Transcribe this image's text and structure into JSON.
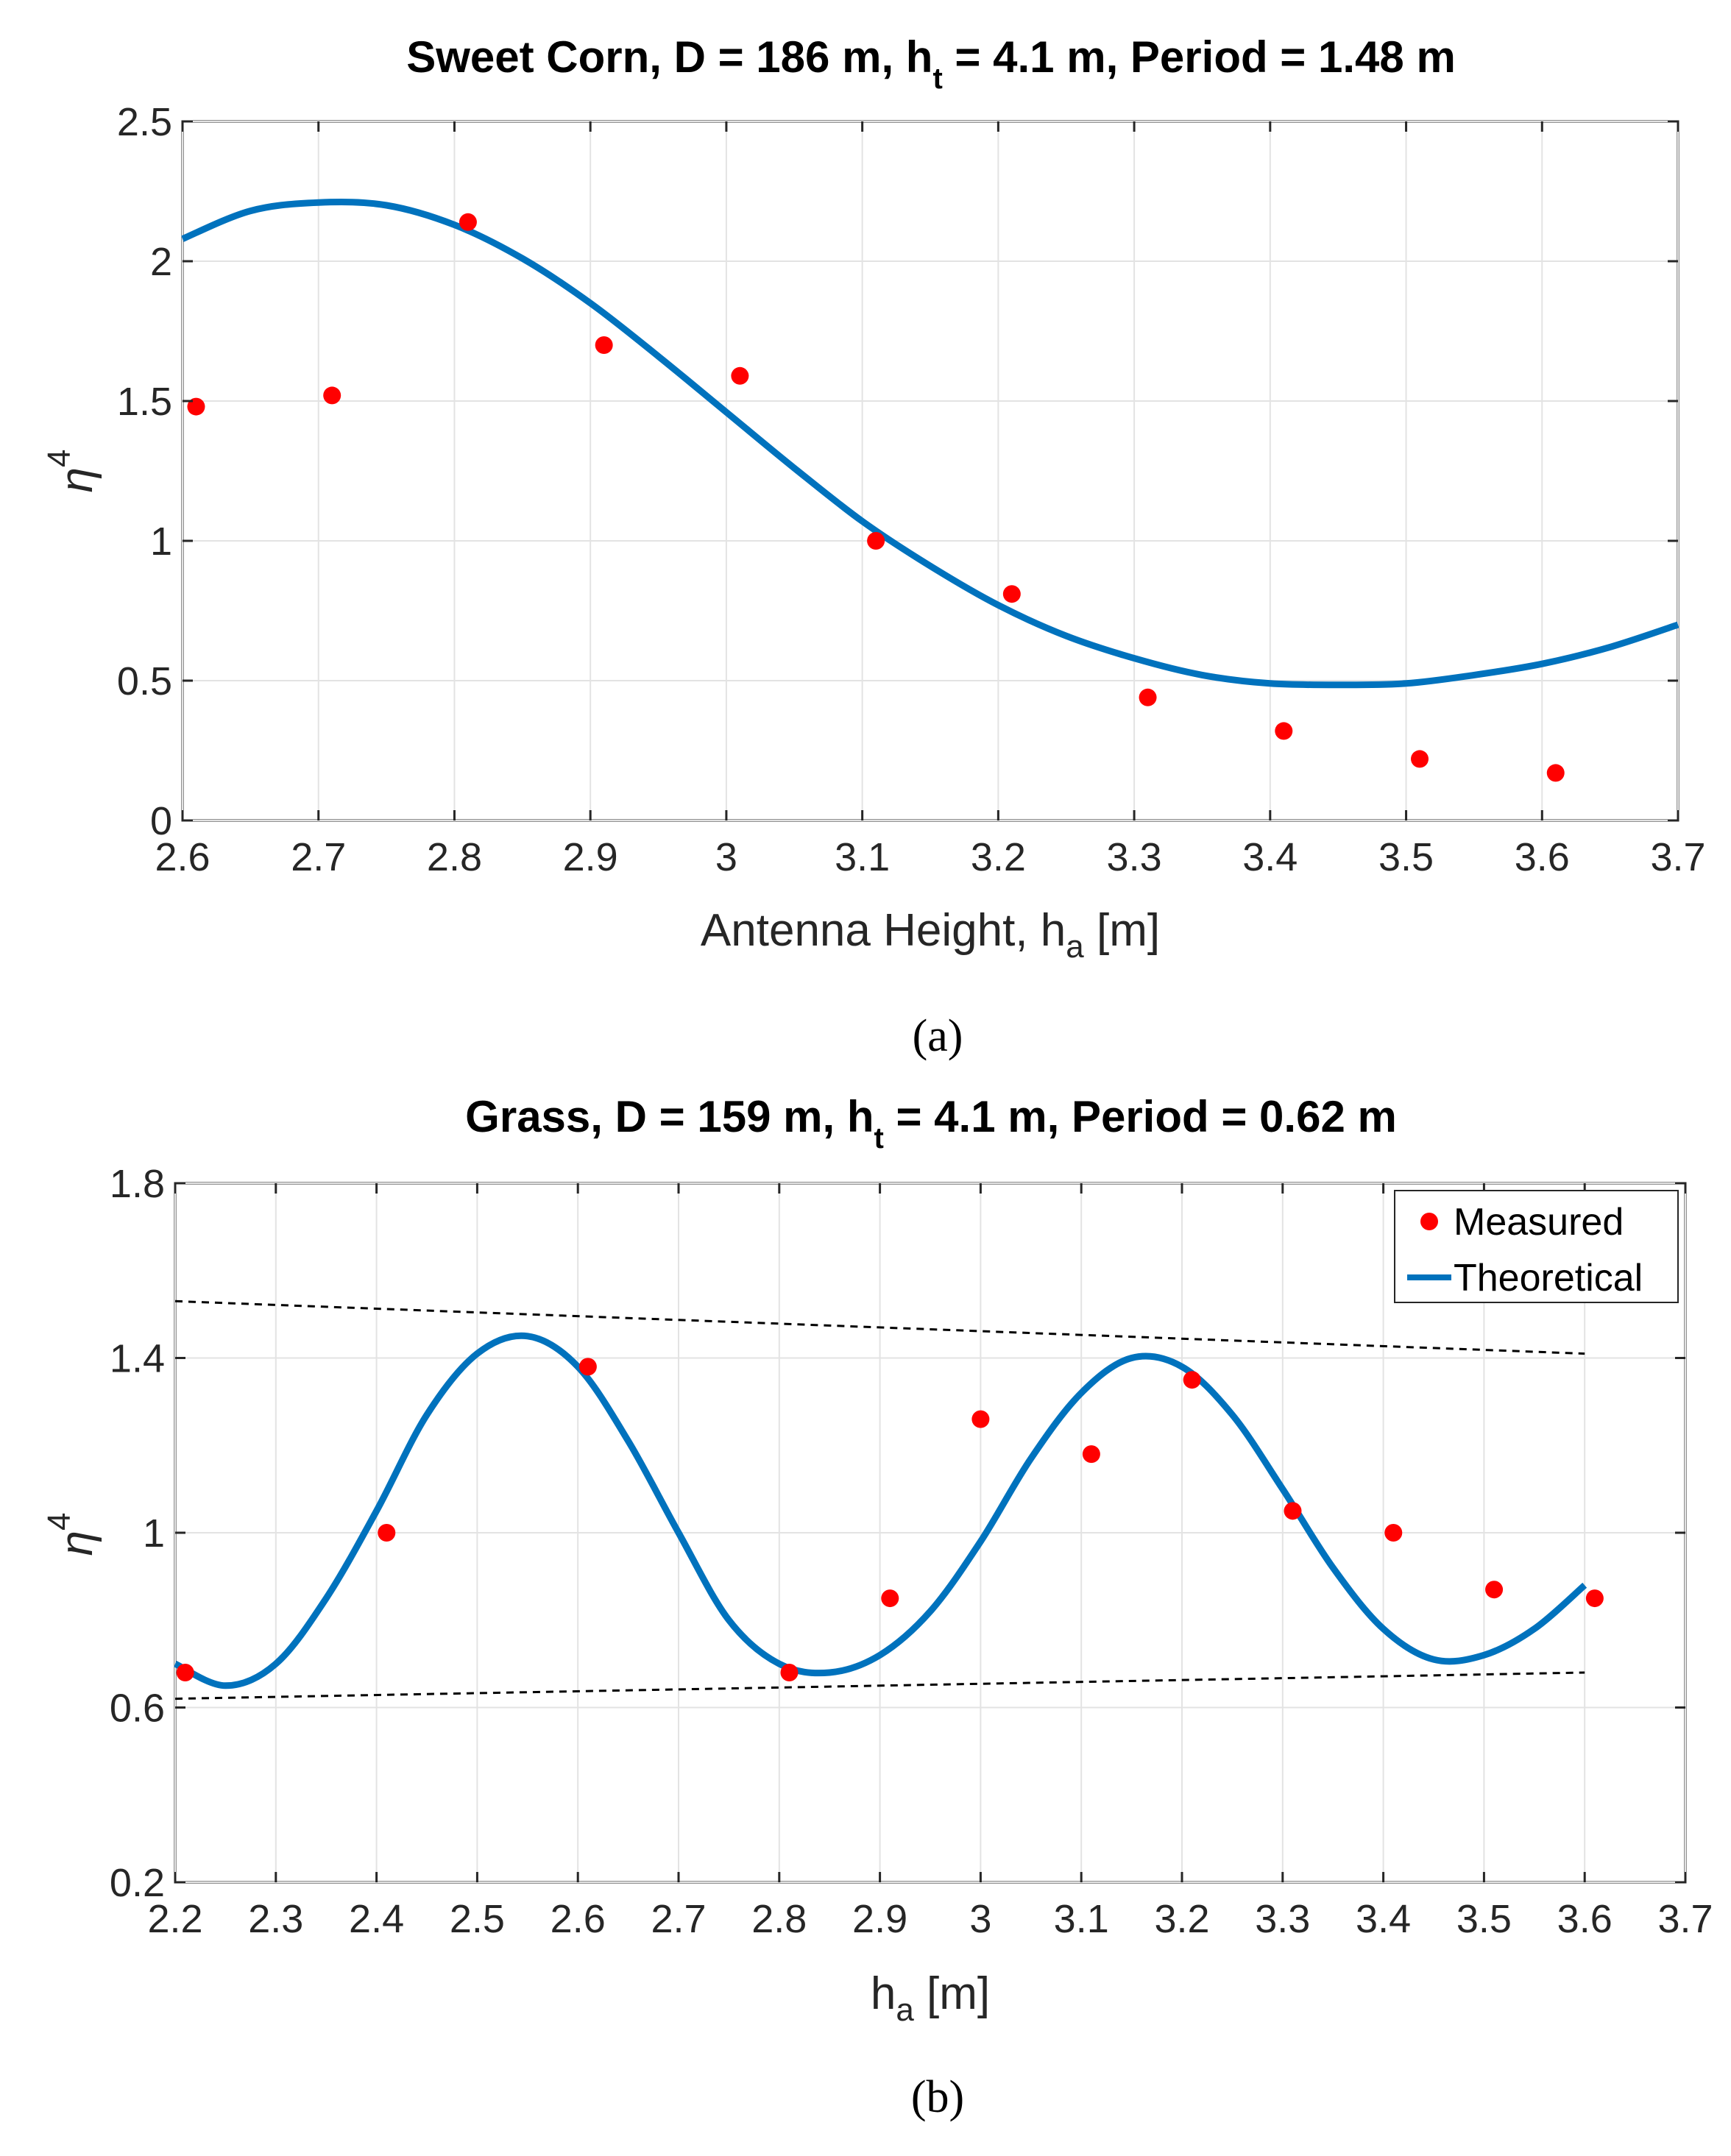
{
  "chart_data": [
    {
      "type": "scatter",
      "panel": "a",
      "title_main": "Sweet Corn, D = 186 m, h",
      "title_sub": "t",
      "title_rest": " = 4.1 m, Period = 1.48 m",
      "xlabel_main": "Antenna Height, h",
      "xlabel_sub": "a",
      "xlabel_rest": " [m]",
      "ylabel_main": "η",
      "ylabel_sup": "4",
      "xlim": [
        2.6,
        3.7
      ],
      "ylim": [
        0,
        2.5
      ],
      "xticks": [
        2.6,
        2.7,
        2.8,
        2.9,
        3.0,
        3.1,
        3.2,
        3.3,
        3.4,
        3.5,
        3.6,
        3.7
      ],
      "xtick_labels": [
        "2.6",
        "2.7",
        "2.8",
        "2.9",
        "3",
        "3.1",
        "3.2",
        "3.3",
        "3.4",
        "3.5",
        "3.6",
        "3.7"
      ],
      "yticks": [
        0,
        0.5,
        1,
        1.5,
        2,
        2.5
      ],
      "ytick_labels": [
        "0",
        "0.5",
        "1",
        "1.5",
        "2",
        "2.5"
      ],
      "grid": true,
      "legend": null,
      "caption": "(a)",
      "series": [
        {
          "name": "Measured",
          "kind": "points",
          "color": "#ff0000",
          "x": [
            2.61,
            2.71,
            2.81,
            2.91,
            3.01,
            3.11,
            3.21,
            3.31,
            3.41,
            3.51,
            3.61
          ],
          "y": [
            1.48,
            1.52,
            2.14,
            1.7,
            1.59,
            1.0,
            0.81,
            0.44,
            0.32,
            0.22,
            0.17
          ]
        },
        {
          "name": "Theoretical",
          "kind": "curve",
          "color": "#0072bd",
          "x": [
            2.6,
            2.65,
            2.7,
            2.75,
            2.8,
            2.85,
            2.9,
            2.95,
            3.0,
            3.05,
            3.1,
            3.15,
            3.2,
            3.25,
            3.3,
            3.35,
            3.4,
            3.45,
            3.5,
            3.55,
            3.6,
            3.65,
            3.7
          ],
          "y": [
            2.08,
            2.18,
            2.21,
            2.2,
            2.13,
            2.01,
            1.85,
            1.66,
            1.46,
            1.26,
            1.07,
            0.91,
            0.77,
            0.66,
            0.58,
            0.52,
            0.49,
            0.485,
            0.49,
            0.52,
            0.56,
            0.62,
            0.7
          ]
        }
      ]
    },
    {
      "type": "scatter",
      "panel": "b",
      "title_main": "Grass, D = 159 m, h",
      "title_sub": "t",
      "title_rest": " = 4.1 m, Period = 0.62 m",
      "xlabel_main": "h",
      "xlabel_sub": "a",
      "xlabel_rest": " [m]",
      "ylabel_main": "η",
      "ylabel_sup": "4",
      "xlim": [
        2.2,
        3.7
      ],
      "ylim": [
        0.2,
        1.8
      ],
      "xticks": [
        2.2,
        2.3,
        2.4,
        2.5,
        2.6,
        2.7,
        2.8,
        2.9,
        3.0,
        3.1,
        3.2,
        3.3,
        3.4,
        3.5,
        3.6,
        3.7
      ],
      "xtick_labels": [
        "2.2",
        "2.3",
        "2.4",
        "2.5",
        "2.6",
        "2.7",
        "2.8",
        "2.9",
        "3",
        "3.1",
        "3.2",
        "3.3",
        "3.4",
        "3.5",
        "3.6",
        "3.7"
      ],
      "yticks": [
        0.2,
        0.6,
        1.0,
        1.4,
        1.8
      ],
      "ytick_labels": [
        "0.2",
        "0.6",
        "1",
        "1.4",
        "1.8"
      ],
      "grid": true,
      "legend": "top-right",
      "caption": "(b)",
      "series": [
        {
          "name": "Measured",
          "kind": "points",
          "color": "#ff0000",
          "x": [
            2.21,
            2.41,
            2.61,
            2.81,
            2.91,
            3.0,
            3.11,
            3.21,
            3.31,
            3.41,
            3.51,
            3.61
          ],
          "y": [
            0.68,
            1.0,
            1.38,
            0.68,
            0.85,
            1.26,
            1.18,
            1.35,
            1.05,
            1.0,
            0.87,
            0.85
          ]
        },
        {
          "name": "Theoretical",
          "kind": "curve",
          "color": "#0072bd",
          "x": [
            2.2,
            2.25,
            2.3,
            2.35,
            2.4,
            2.45,
            2.5,
            2.55,
            2.6,
            2.65,
            2.7,
            2.75,
            2.8,
            2.85,
            2.9,
            2.95,
            3.0,
            3.05,
            3.1,
            3.15,
            3.2,
            3.25,
            3.3,
            3.35,
            3.4,
            3.45,
            3.5,
            3.55,
            3.6
          ],
          "y": [
            0.7,
            0.65,
            0.7,
            0.85,
            1.05,
            1.27,
            1.41,
            1.45,
            1.38,
            1.21,
            1.0,
            0.8,
            0.7,
            0.68,
            0.72,
            0.82,
            0.98,
            1.17,
            1.32,
            1.4,
            1.38,
            1.27,
            1.1,
            0.92,
            0.78,
            0.71,
            0.72,
            0.78,
            0.88
          ]
        },
        {
          "name": "",
          "kind": "envelope",
          "color": "#000000",
          "x": [
            2.2,
            3.6
          ],
          "y": [
            1.53,
            1.41
          ]
        },
        {
          "name": "",
          "kind": "envelope",
          "color": "#000000",
          "x": [
            2.2,
            3.6
          ],
          "y": [
            0.62,
            0.68
          ]
        }
      ]
    }
  ]
}
